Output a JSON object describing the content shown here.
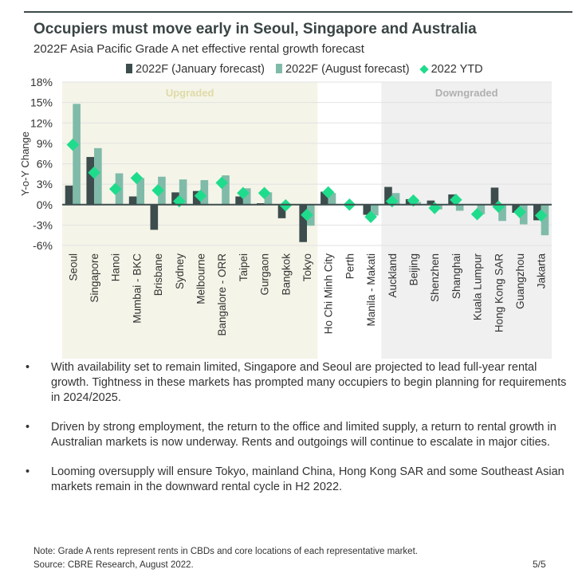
{
  "title": "Occupiers must move early in Seoul, Singapore and Australia",
  "subtitle": "2022F Asia Pacific Grade A net effective rental growth forecast",
  "colors": {
    "jan": "#3d4d4d",
    "aug": "#80bba9",
    "ytd": "#1fdc8c",
    "upgraded_bg": "#f5f4e8",
    "downgraded_bg": "#f0f0f0"
  },
  "chart_data": {
    "type": "bar",
    "ylabel": "Y-o-Y Change",
    "ylim": [
      -6,
      18
    ],
    "yticks": [
      "18%",
      "15%",
      "12%",
      "9%",
      "6%",
      "3%",
      "0%",
      "-3%",
      "-6%"
    ],
    "grid": true,
    "legend_placement": "top",
    "regions": [
      {
        "label": "Upgraded",
        "from": "Seoul",
        "to": "Tokyo"
      },
      {
        "label": "Downgraded",
        "from": "Auckland",
        "to": "Jakarta"
      }
    ],
    "categories": [
      "Seoul",
      "Singapore",
      "Hanoi",
      "Mumbai - BKC",
      "Brisbane",
      "Sydney",
      "Melbourne",
      "Bangalore - ORR",
      "Taipei",
      "Gurgaon",
      "Bangkok",
      "Tokyo",
      "Ho Chi Minh City",
      "Perth",
      "Manila - Makati",
      "Auckland",
      "Beijing",
      "Shenzhen",
      "Shanghai",
      "Kuala Lumpur",
      "Hong Kong SAR",
      "Guangzhou",
      "Jakarta"
    ],
    "series": [
      {
        "name": "2022F (January forecast)",
        "type": "bar",
        "values": [
          2.8,
          7.0,
          0,
          1.2,
          -3.7,
          1.8,
          2.0,
          0,
          1.2,
          0.2,
          -2.0,
          -5.5,
          1.9,
          0,
          -1.5,
          2.6,
          0.8,
          0.6,
          1.5,
          0,
          2.5,
          -1.2,
          -2.3
        ]
      },
      {
        "name": "2022F (August forecast)",
        "type": "bar",
        "values": [
          14.8,
          8.3,
          4.6,
          3.9,
          4.1,
          3.7,
          3.6,
          4.3,
          2.4,
          1.8,
          0,
          -3.1,
          1.7,
          0,
          -1.6,
          1.7,
          0.4,
          -0.7,
          -0.9,
          -1.4,
          -2.4,
          -2.9,
          -4.5
        ]
      },
      {
        "name": "2022 YTD",
        "type": "marker",
        "values": [
          8.8,
          4.7,
          2.3,
          3.9,
          2.1,
          0.5,
          1.3,
          3.2,
          1.7,
          1.7,
          -0.1,
          -1.5,
          1.8,
          0,
          -1.8,
          0.5,
          0.6,
          -0.5,
          0.7,
          -1.4,
          -0.3,
          -1.1,
          -1.6
        ]
      }
    ]
  },
  "bullets": [
    "With availability set to remain limited, Singapore and Seoul are projected to lead full-year rental growth. Tightness in these markets has prompted many occupiers to begin planning for requirements in 2024/2025.",
    "Driven by strong employment, the return to the office and limited supply, a return to rental growth in Australian markets is now underway. Rents and outgoings will continue to escalate in major cities.",
    "Looming oversupply will ensure Tokyo, mainland China, Hong Kong SAR and some Southeast Asian markets remain in the downward rental cycle in H2 2022."
  ],
  "bullet_glyph": "•",
  "note": "Note: Grade A rents represent rents in CBDs and core locations of each representative market.",
  "source": "Source: CBRE Research, August 2022.",
  "page": "5/5"
}
